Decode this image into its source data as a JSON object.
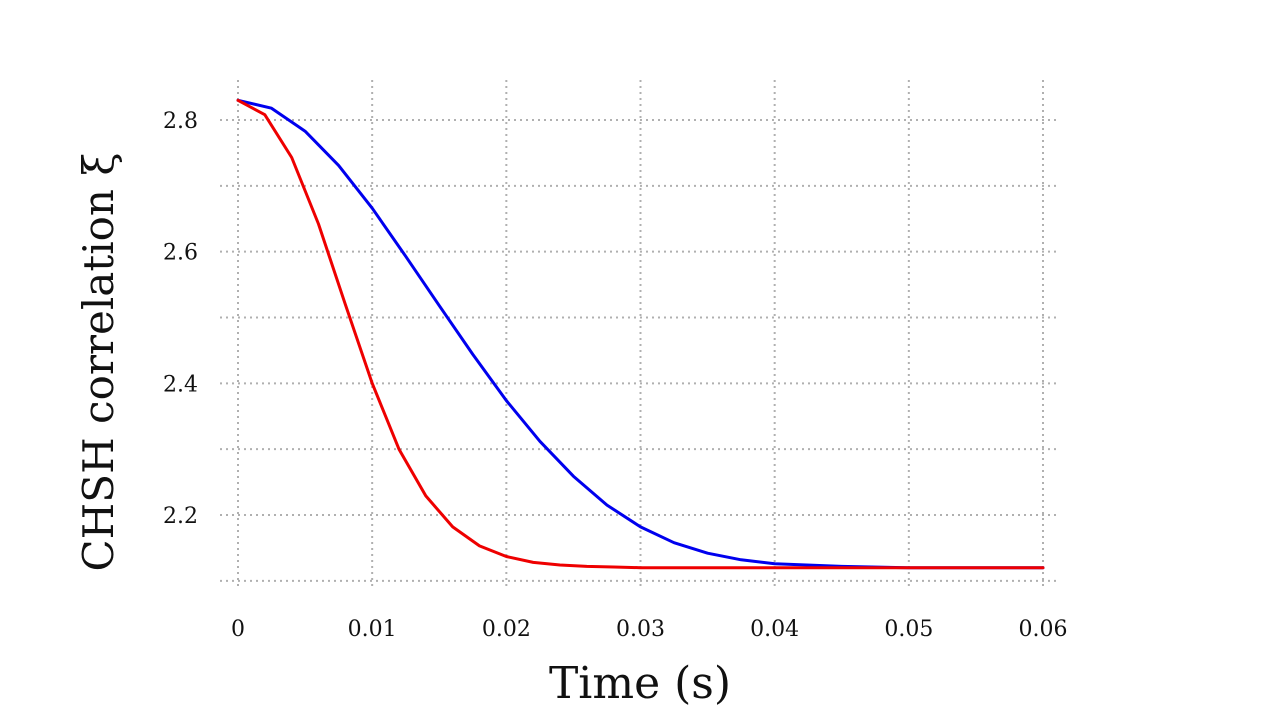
{
  "chart_data": {
    "type": "line",
    "title": "",
    "xlabel": "Time (s)",
    "ylabel": "CHSH correlation ξ",
    "xlim": [
      0,
      0.06
    ],
    "ylim": [
      2.1,
      2.83
    ],
    "xticks": [
      0,
      0.01,
      0.02,
      0.03,
      0.04,
      0.05,
      0.06
    ],
    "xtick_labels": [
      "0",
      "0.01",
      "0.02",
      "0.03",
      "0.04",
      "0.05",
      "0.06"
    ],
    "yticks": [
      2.2,
      2.4,
      2.6,
      2.8
    ],
    "ytick_labels": [
      "2.2",
      "2.4",
      "2.6",
      "2.8"
    ],
    "grid": true,
    "legend": "none",
    "series": [
      {
        "color": "#0000ee",
        "x": [
          0,
          0.0025,
          0.005,
          0.0075,
          0.01,
          0.0125,
          0.015,
          0.0175,
          0.02,
          0.0225,
          0.025,
          0.0275,
          0.03,
          0.0325,
          0.035,
          0.0375,
          0.04,
          0.045,
          0.05,
          0.055,
          0.06
        ],
        "y": [
          2.83,
          2.818,
          2.783,
          2.731,
          2.666,
          2.593,
          2.518,
          2.444,
          2.374,
          2.312,
          2.259,
          2.215,
          2.182,
          2.158,
          2.142,
          2.132,
          2.126,
          2.122,
          2.12,
          2.12,
          2.12
        ]
      },
      {
        "color": "#ee0000",
        "x": [
          0,
          0.002,
          0.004,
          0.006,
          0.008,
          0.01,
          0.012,
          0.014,
          0.016,
          0.018,
          0.02,
          0.022,
          0.024,
          0.026,
          0.028,
          0.03,
          0.035,
          0.04,
          0.05,
          0.06
        ],
        "y": [
          2.83,
          2.808,
          2.743,
          2.642,
          2.52,
          2.4,
          2.3,
          2.229,
          2.182,
          2.153,
          2.137,
          2.128,
          2.124,
          2.122,
          2.121,
          2.12,
          2.12,
          2.12,
          2.12,
          2.12
        ]
      }
    ]
  }
}
